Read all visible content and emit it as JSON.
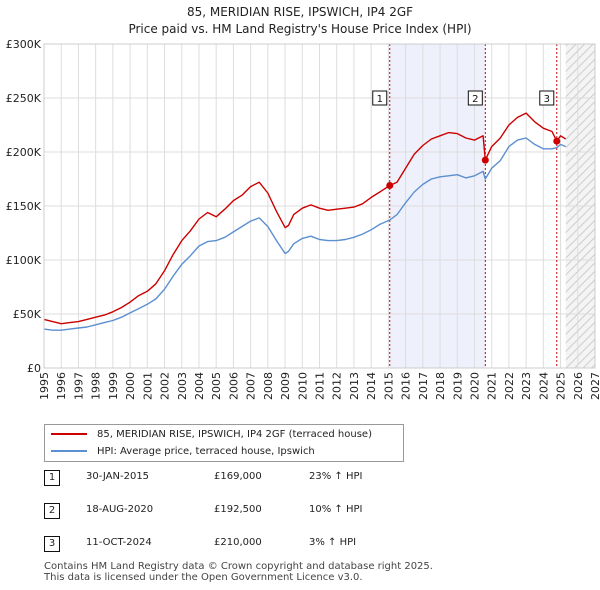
{
  "title_line1": "85, MERIDIAN RISE, IPSWICH, IP4 2GF",
  "title_line2": "Price paid vs. HM Land Registry's House Price Index (HPI)",
  "chart_data": {
    "type": "line",
    "title": "85, MERIDIAN RISE, IPSWICH, IP4 2GF — Price paid vs. HM Land Registry's House Price Index (HPI)",
    "xlim": [
      1995,
      2027
    ],
    "ylim": [
      0,
      300000
    ],
    "x_ticks": [
      1995,
      1996,
      1997,
      1998,
      1999,
      2000,
      2001,
      2002,
      2003,
      2004,
      2005,
      2006,
      2007,
      2008,
      2009,
      2010,
      2011,
      2012,
      2013,
      2014,
      2015,
      2016,
      2017,
      2018,
      2019,
      2020,
      2021,
      2022,
      2023,
      2024,
      2025,
      2026,
      2027
    ],
    "y_ticks": [
      0,
      50000,
      100000,
      150000,
      200000,
      250000,
      300000
    ],
    "y_tick_labels": [
      "£0",
      "£50K",
      "£100K",
      "£150K",
      "£200K",
      "£250K",
      "£300K"
    ],
    "grid": true,
    "series": [
      {
        "name": "85, MERIDIAN RISE, IPSWICH, IP4 2GF (terraced house)",
        "color": "#cc0000",
        "x": [
          1995.0,
          1995.5,
          1996.0,
          1996.5,
          1997.0,
          1997.5,
          1998.0,
          1998.5,
          1999.0,
          1999.5,
          2000.0,
          2000.5,
          2001.0,
          2001.5,
          2002.0,
          2002.5,
          2003.0,
          2003.5,
          2004.0,
          2004.5,
          2005.0,
          2005.5,
          2006.0,
          2006.5,
          2007.0,
          2007.5,
          2008.0,
          2008.5,
          2009.0,
          2009.2,
          2009.5,
          2010.0,
          2010.5,
          2011.0,
          2011.5,
          2012.0,
          2012.5,
          2013.0,
          2013.5,
          2014.0,
          2014.5,
          2015.08,
          2015.5,
          2016.0,
          2016.5,
          2017.0,
          2017.5,
          2018.0,
          2018.5,
          2019.0,
          2019.5,
          2020.0,
          2020.5,
          2020.63,
          2021.0,
          2021.5,
          2022.0,
          2022.5,
          2023.0,
          2023.5,
          2024.0,
          2024.5,
          2024.78,
          2025.0,
          2025.3
        ],
        "values": [
          45000,
          43000,
          41000,
          42000,
          43000,
          45000,
          47000,
          49000,
          52000,
          56000,
          61000,
          67000,
          71000,
          78000,
          90000,
          105000,
          118000,
          127000,
          138000,
          144000,
          140000,
          147000,
          155000,
          160000,
          168000,
          172000,
          162000,
          145000,
          130000,
          132000,
          142000,
          148000,
          151000,
          148000,
          146000,
          147000,
          148000,
          149000,
          152000,
          158000,
          163000,
          169000,
          172000,
          185000,
          198000,
          206000,
          212000,
          215000,
          218000,
          217000,
          213000,
          211000,
          215000,
          192500,
          205000,
          213000,
          225000,
          232000,
          236000,
          228000,
          222000,
          219000,
          210000,
          215000,
          212000
        ]
      },
      {
        "name": "HPI: Average price, terraced house, Ipswich",
        "color": "#5b8fd0",
        "x": [
          1995.0,
          1995.5,
          1996.0,
          1996.5,
          1997.0,
          1997.5,
          1998.0,
          1998.5,
          1999.0,
          1999.5,
          2000.0,
          2000.5,
          2001.0,
          2001.5,
          2002.0,
          2002.5,
          2003.0,
          2003.5,
          2004.0,
          2004.5,
          2005.0,
          2005.5,
          2006.0,
          2006.5,
          2007.0,
          2007.5,
          2008.0,
          2008.5,
          2009.0,
          2009.2,
          2009.5,
          2010.0,
          2010.5,
          2011.0,
          2011.5,
          2012.0,
          2012.5,
          2013.0,
          2013.5,
          2014.0,
          2014.5,
          2015.08,
          2015.5,
          2016.0,
          2016.5,
          2017.0,
          2017.5,
          2018.0,
          2018.5,
          2019.0,
          2019.5,
          2020.0,
          2020.5,
          2020.63,
          2021.0,
          2021.5,
          2022.0,
          2022.5,
          2023.0,
          2023.5,
          2024.0,
          2024.5,
          2024.78,
          2025.0,
          2025.3
        ],
        "values": [
          36000,
          35000,
          35000,
          36000,
          37000,
          38000,
          40000,
          42000,
          44000,
          47000,
          51000,
          55000,
          59000,
          64000,
          73000,
          85000,
          96000,
          104000,
          113000,
          117000,
          118000,
          121000,
          126000,
          131000,
          136000,
          139000,
          131000,
          118000,
          106000,
          108000,
          115000,
          120000,
          122000,
          119000,
          118000,
          118000,
          119000,
          121000,
          124000,
          128000,
          133000,
          137000,
          142000,
          153000,
          163000,
          170000,
          175000,
          177000,
          178000,
          179000,
          176000,
          178000,
          182000,
          175000,
          185000,
          192000,
          205000,
          211000,
          213000,
          207000,
          203000,
          203000,
          204000,
          207000,
          205000
        ]
      }
    ],
    "sales": [
      {
        "id": "1",
        "x": 2015.08,
        "price": 169000,
        "date": "30-JAN-2015",
        "price_label": "£169,000",
        "hpi_label": "23% ↑ HPI"
      },
      {
        "id": "2",
        "x": 2020.63,
        "price": 192500,
        "date": "18-AUG-2020",
        "price_label": "£192,500",
        "hpi_label": "10% ↑ HPI"
      },
      {
        "id": "3",
        "x": 2024.78,
        "price": 210000,
        "date": "11-OCT-2024",
        "price_label": "£210,000",
        "hpi_label": "3% ↑ HPI"
      }
    ],
    "shaded_range": [
      2015.08,
      2020.63
    ],
    "forecast_from": 2025.3,
    "colors": {
      "shade": "#eef0fb",
      "grid": "#dddddd",
      "sale_line": "#cc0000"
    }
  },
  "legend": {
    "series1": "85, MERIDIAN RISE, IPSWICH, IP4 2GF (terraced house)",
    "series2": "HPI: Average price, terraced house, Ipswich"
  },
  "footer": {
    "line1": "Contains HM Land Registry data © Crown copyright and database right 2025.",
    "line2": "This data is licensed under the Open Government Licence v3.0."
  }
}
